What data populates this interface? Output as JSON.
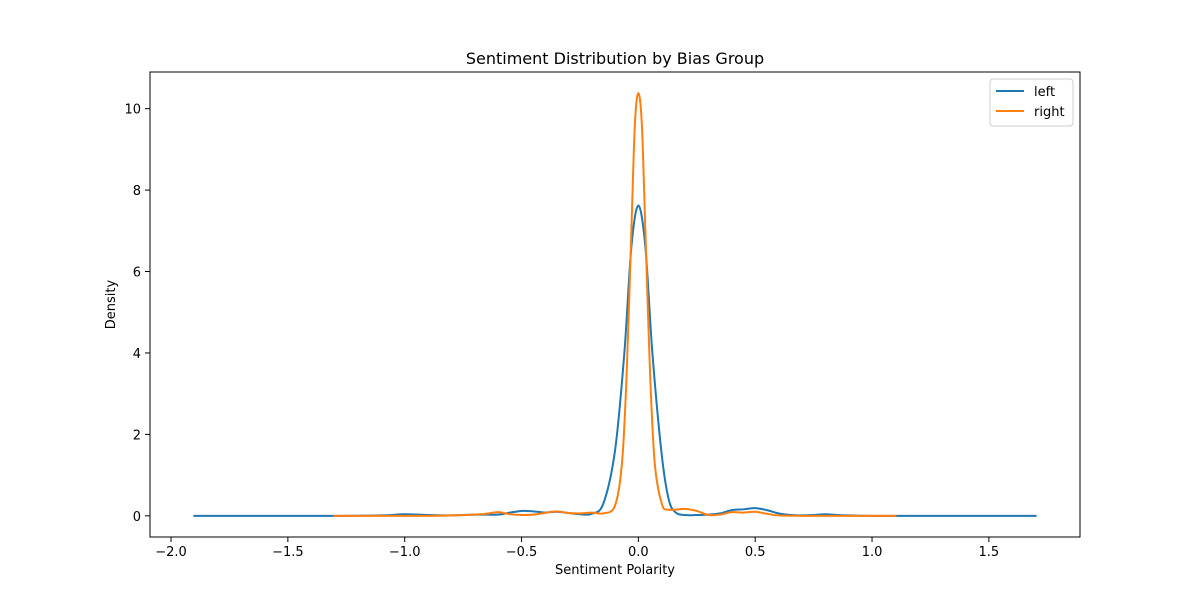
{
  "chart_data": {
    "type": "line",
    "title": "Sentiment Distribution by Bias Group",
    "xlabel": "Sentiment Polarity",
    "ylabel": "Density",
    "xlim": [
      -2.09,
      1.89
    ],
    "ylim": [
      -0.52,
      10.9
    ],
    "xticks": [
      -2.0,
      -1.5,
      -1.0,
      -0.5,
      0.0,
      0.5,
      1.0,
      1.5
    ],
    "xtick_labels": [
      "−2.0",
      "−1.5",
      "−1.0",
      "−0.5",
      "0.0",
      "0.5",
      "1.0",
      "1.5"
    ],
    "yticks": [
      0,
      2,
      4,
      6,
      8,
      10
    ],
    "ytick_labels": [
      "0",
      "2",
      "4",
      "6",
      "8",
      "10"
    ],
    "grid": false,
    "legend_position": "top-right",
    "series": [
      {
        "name": "left",
        "color": "#1f77b4",
        "points": [
          [
            -1.9,
            0.0
          ],
          [
            -1.3,
            0.0
          ],
          [
            -1.1,
            0.01
          ],
          [
            -1.0,
            0.04
          ],
          [
            -0.9,
            0.02
          ],
          [
            -0.8,
            0.01
          ],
          [
            -0.7,
            0.03
          ],
          [
            -0.6,
            0.03
          ],
          [
            -0.55,
            0.08
          ],
          [
            -0.5,
            0.12
          ],
          [
            -0.45,
            0.11
          ],
          [
            -0.4,
            0.08
          ],
          [
            -0.35,
            0.1
          ],
          [
            -0.3,
            0.07
          ],
          [
            -0.25,
            0.04
          ],
          [
            -0.2,
            0.05
          ],
          [
            -0.15,
            0.3
          ],
          [
            -0.1,
            1.6
          ],
          [
            -0.06,
            4.0
          ],
          [
            -0.03,
            6.6
          ],
          [
            0.0,
            7.62
          ],
          [
            0.03,
            6.6
          ],
          [
            0.06,
            4.0
          ],
          [
            0.1,
            1.5
          ],
          [
            0.13,
            0.4
          ],
          [
            0.16,
            0.08
          ],
          [
            0.2,
            0.02
          ],
          [
            0.25,
            0.02
          ],
          [
            0.3,
            0.03
          ],
          [
            0.35,
            0.06
          ],
          [
            0.4,
            0.14
          ],
          [
            0.45,
            0.16
          ],
          [
            0.5,
            0.19
          ],
          [
            0.55,
            0.14
          ],
          [
            0.6,
            0.06
          ],
          [
            0.65,
            0.02
          ],
          [
            0.7,
            0.01
          ],
          [
            0.75,
            0.02
          ],
          [
            0.8,
            0.04
          ],
          [
            0.85,
            0.02
          ],
          [
            0.9,
            0.01
          ],
          [
            1.0,
            0.0
          ],
          [
            1.2,
            0.0
          ],
          [
            1.5,
            0.0
          ],
          [
            1.7,
            0.0
          ]
        ]
      },
      {
        "name": "right",
        "color": "#ff7f0e",
        "points": [
          [
            -1.3,
            0.0
          ],
          [
            -1.1,
            0.0
          ],
          [
            -0.9,
            0.0
          ],
          [
            -0.8,
            0.01
          ],
          [
            -0.7,
            0.03
          ],
          [
            -0.65,
            0.05
          ],
          [
            -0.6,
            0.09
          ],
          [
            -0.55,
            0.04
          ],
          [
            -0.5,
            0.02
          ],
          [
            -0.45,
            0.03
          ],
          [
            -0.4,
            0.07
          ],
          [
            -0.35,
            0.11
          ],
          [
            -0.3,
            0.07
          ],
          [
            -0.25,
            0.06
          ],
          [
            -0.2,
            0.08
          ],
          [
            -0.15,
            0.06
          ],
          [
            -0.1,
            0.25
          ],
          [
            -0.07,
            1.3
          ],
          [
            -0.05,
            3.5
          ],
          [
            -0.03,
            7.0
          ],
          [
            -0.015,
            9.6
          ],
          [
            0.0,
            10.38
          ],
          [
            0.015,
            9.6
          ],
          [
            0.03,
            7.0
          ],
          [
            0.05,
            3.5
          ],
          [
            0.07,
            1.3
          ],
          [
            0.1,
            0.3
          ],
          [
            0.13,
            0.15
          ],
          [
            0.2,
            0.17
          ],
          [
            0.25,
            0.12
          ],
          [
            0.3,
            0.02
          ],
          [
            0.35,
            0.03
          ],
          [
            0.4,
            0.09
          ],
          [
            0.45,
            0.08
          ],
          [
            0.5,
            0.1
          ],
          [
            0.55,
            0.05
          ],
          [
            0.6,
            0.01
          ],
          [
            0.7,
            0.0
          ],
          [
            0.9,
            0.0
          ],
          [
            1.1,
            0.0
          ]
        ]
      }
    ]
  }
}
